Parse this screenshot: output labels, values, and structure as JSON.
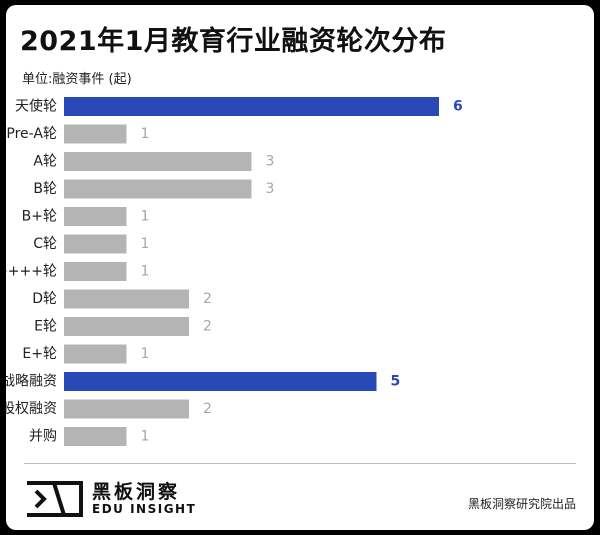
{
  "header": {
    "title": "2021年1月教育行业融资轮次分布",
    "unit_label": "单位:融资事件 (起)"
  },
  "chart_data": {
    "type": "bar",
    "orientation": "horizontal",
    "title": "2021年1月教育行业融资轮次分布",
    "categories": [
      "天使轮",
      "Pre-A轮",
      "A轮",
      "B轮",
      "B+轮",
      "C轮",
      "C++++轮",
      "D轮",
      "E轮",
      "E+轮",
      "战略融资",
      "股权融资",
      "并购"
    ],
    "values": [
      6,
      1,
      3,
      3,
      1,
      1,
      1,
      2,
      2,
      1,
      5,
      2,
      1
    ],
    "highlight": [
      "天使轮",
      "战略融资"
    ],
    "colors": {
      "highlight_bar": "#2948b8",
      "normal_bar": "#b4b4b4",
      "highlight_value": "#2948b8",
      "normal_value": "#a7a7a7"
    },
    "grid": false
  },
  "footer": {
    "logo_name": "黑板洞察",
    "logo_subtitle": "EDU INSIGHT",
    "source": "黑板洞察研究院出品"
  }
}
